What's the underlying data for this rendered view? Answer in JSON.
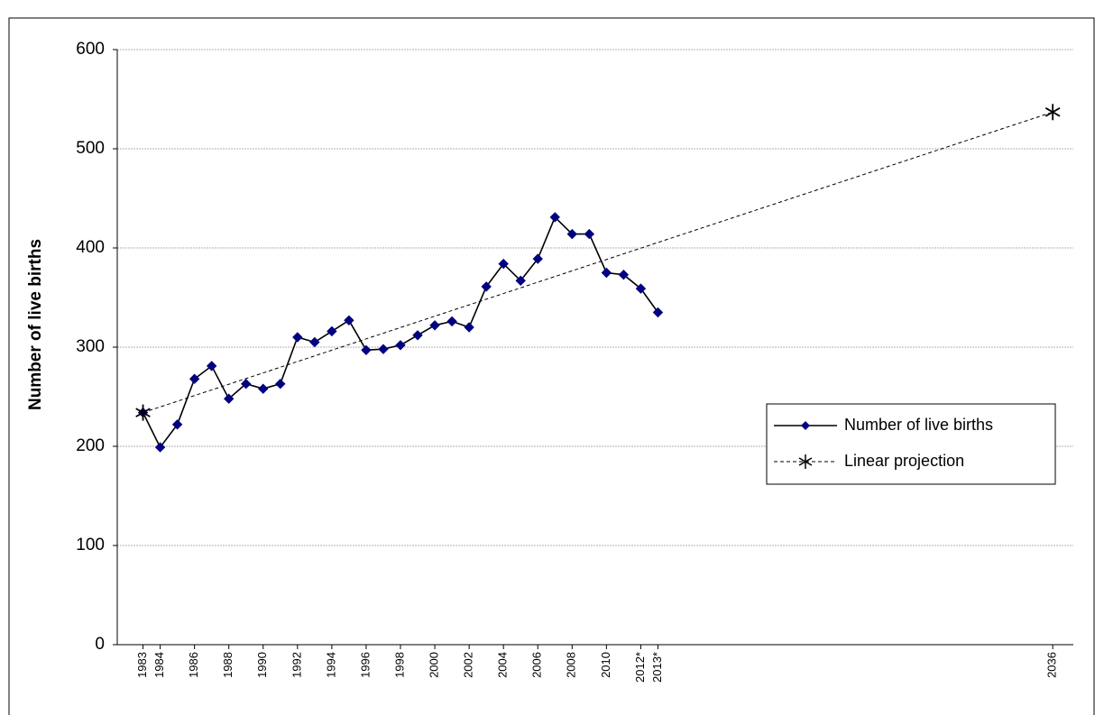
{
  "chart_data": {
    "type": "line",
    "y_label": "Number of live births",
    "series": [
      {
        "name": "Number of live births",
        "color": "#000080",
        "line_color": "#000000",
        "marker": "diamond",
        "dashed": false,
        "x": [
          1983,
          1984,
          1985,
          1986,
          1987,
          1988,
          1989,
          1990,
          1991,
          1992,
          1993,
          1994,
          1995,
          1996,
          1997,
          1998,
          1999,
          2000,
          2001,
          2002,
          2003,
          2004,
          2005,
          2006,
          2007,
          2008,
          2009,
          2010,
          2011,
          2012,
          2013
        ],
        "values": [
          234,
          199,
          222,
          268,
          281,
          248,
          263,
          258,
          263,
          310,
          305,
          316,
          327,
          297,
          298,
          302,
          312,
          322,
          326,
          320,
          361,
          384,
          367,
          389,
          431,
          414,
          414,
          375,
          373,
          359,
          335
        ]
      },
      {
        "name": "Linear projection",
        "color": "#000000",
        "line_color": "#000000",
        "marker": "star",
        "dashed": true,
        "x": [
          1983,
          2036
        ],
        "values": [
          234,
          537
        ]
      }
    ],
    "xlim": [
      1981.5,
      2037.2
    ],
    "xticks": [
      1983,
      1984,
      1986,
      1988,
      1990,
      1992,
      1994,
      1996,
      1998,
      2000,
      2002,
      2004,
      2006,
      2008,
      2010,
      {
        "value": 2012,
        "label": "2012*"
      },
      {
        "value": 2013,
        "label": "2013*"
      },
      2036
    ],
    "ylim": [
      0,
      600
    ],
    "yticks": [
      0,
      100,
      200,
      300,
      400,
      500,
      600
    ],
    "grid": true,
    "legend": "right"
  }
}
